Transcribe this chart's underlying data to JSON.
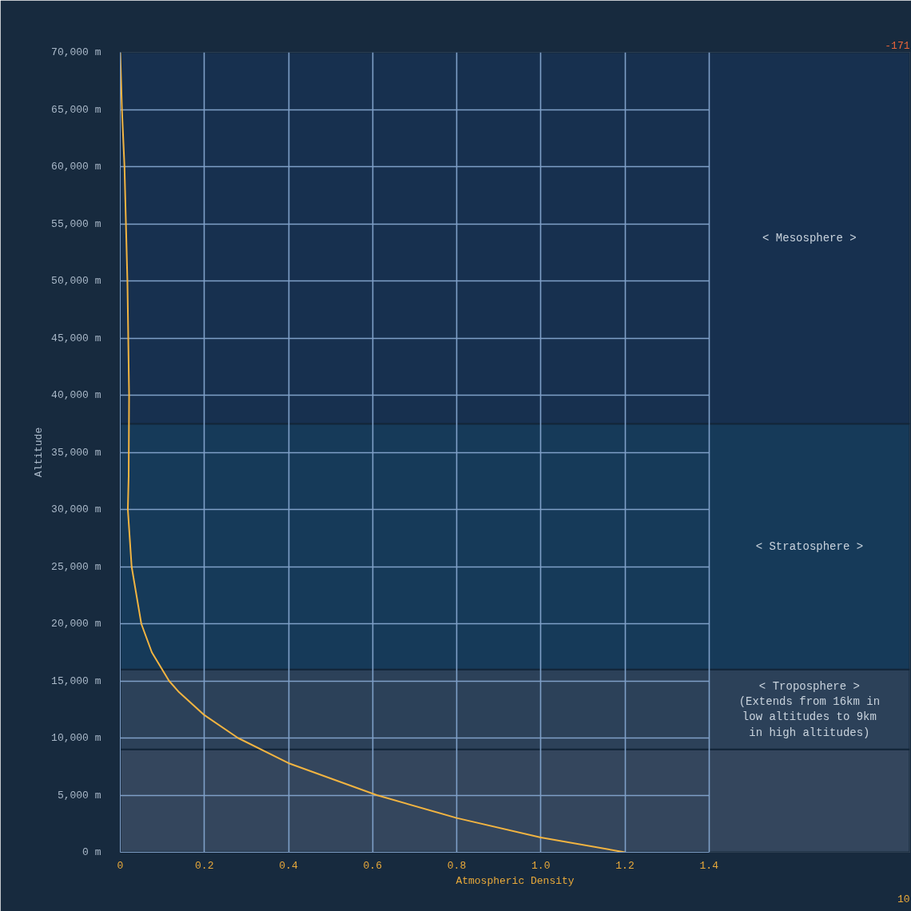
{
  "chart_data": {
    "type": "line",
    "xlabel": "Atmospheric Density",
    "ylabel": "Altitude",
    "xlim": [
      0,
      1.4
    ],
    "xticks": [
      {
        "value": 0,
        "label": "0"
      },
      0.2,
      0.4,
      0.6,
      0.8,
      {
        "value": 1.0,
        "label": "1.0"
      },
      1.2,
      1.4
    ],
    "ylim": [
      0,
      70000
    ],
    "yticks": [
      {
        "value": 0,
        "label": "0 m"
      },
      {
        "value": 5000,
        "label": "5,000 m"
      },
      {
        "value": 10000,
        "label": "10,000 m"
      },
      {
        "value": 15000,
        "label": "15,000 m"
      },
      {
        "value": 20000,
        "label": "20,000 m"
      },
      {
        "value": 25000,
        "label": "25,000 m"
      },
      {
        "value": 30000,
        "label": "30,000 m"
      },
      {
        "value": 35000,
        "label": "35,000 m"
      },
      {
        "value": 40000,
        "label": "40,000 m"
      },
      {
        "value": 45000,
        "label": "45,000 m"
      },
      {
        "value": 50000,
        "label": "50,000 m"
      },
      {
        "value": 55000,
        "label": "55,000 m"
      },
      {
        "value": 60000,
        "label": "60,000 m"
      },
      {
        "value": 65000,
        "label": "65,000 m"
      },
      {
        "value": 70000,
        "label": "70,000 m"
      }
    ],
    "grid": true,
    "marker": "none",
    "line_style": "solid",
    "series": [
      {
        "color": "#f2b441",
        "x": [
          1.2,
          1.0,
          0.8,
          0.61,
          0.4,
          0.28,
          0.2,
          0.14,
          0.116,
          0.075,
          0.05,
          0.027,
          0.018,
          0.02,
          0.021,
          0.017,
          0.01,
          0.004,
          0
        ],
        "values": [
          0,
          1300,
          3000,
          5000,
          7800,
          10000,
          12000,
          14000,
          15000,
          17500,
          20000,
          25000,
          30000,
          33000,
          40000,
          50000,
          60000,
          65000,
          70000
        ]
      }
    ],
    "bands": [
      {
        "axis": "y",
        "from": 0,
        "to": 9000,
        "label": null,
        "color": "#34465d"
      },
      {
        "axis": "y",
        "from": 9000,
        "to": 16000,
        "label": "< Troposphere >\n(Extends from 16km in\nlow altitudes to 9km\nin high altitudes)",
        "color": "#2c4159"
      },
      {
        "axis": "y",
        "from": 16000,
        "to": 37500,
        "label": "< Stratosphere >",
        "color": "#163a59"
      },
      {
        "axis": "y",
        "from": 37500,
        "to": 70000,
        "label": "< Mesosphere >",
        "color": "#17304f"
      }
    ],
    "annotations": [
      "-171",
      "10"
    ]
  }
}
